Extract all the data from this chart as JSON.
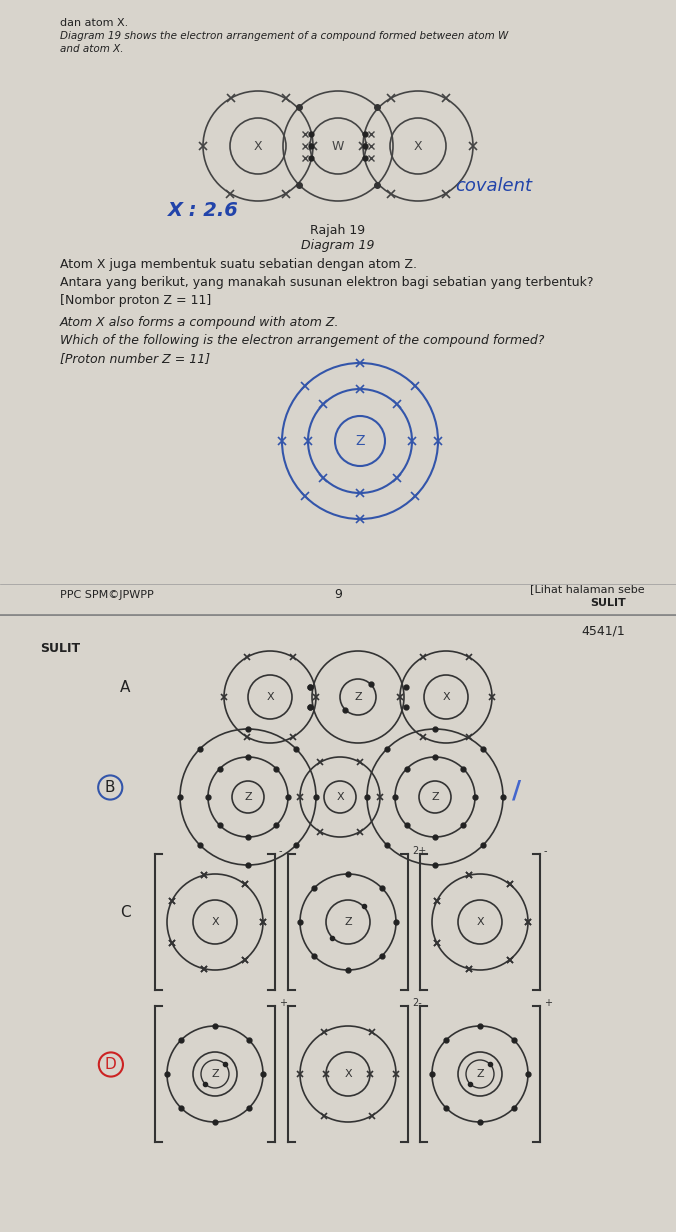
{
  "bg_color": "#e8e6e0",
  "page1_bg": "#e8e6e0",
  "page2_bg": "#f0eeea",
  "text_color": "#222222",
  "blue_color": "#3355aa",
  "dark_color": "#333333",
  "header_text1": "dan atom X.",
  "header_text2": "Diagram 19 shows the electron arrangement of a compound formed between atom W",
  "header_text3": "and atom X.",
  "diagram19_label_malay": "Rajah 19",
  "diagram19_label_english": "Diagram 19",
  "handwritten_x": "X : 2.6",
  "handwritten_covalent": "covalent",
  "question_malay1": "Atom X juga membentuk suatu sebatian dengan atom Z.",
  "question_malay2": "Antara yang berikut, yang manakah susunan elektron bagi sebatian yang terbentuk?",
  "question_malay3": "[Nombor proton Z = 11]",
  "question_english1": "Atom X also forms a compound with atom Z.",
  "question_english2": "Which of the following is the electron arrangement of the compound formed?",
  "question_english3": "[Proton number Z = 11]",
  "footer_left": "PPC SPM©JPWPP",
  "footer_center": "9",
  "footer_right": "[Lihat halaman sebe",
  "footer_right2": "SULIT",
  "page2_top_right": "4541/1",
  "page2_top_left": "SULIT",
  "option_A": "A",
  "option_B": "B",
  "option_C": "C",
  "option_D": "D"
}
